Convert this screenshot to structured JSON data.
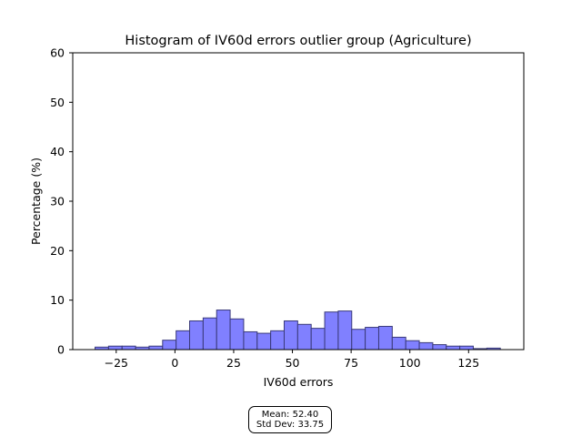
{
  "chart_data": {
    "type": "bar",
    "title": "Histogram of IV60d errors outlier group (Agriculture)",
    "xlabel": "IV60d errors",
    "ylabel": "Percentage (%)",
    "xlim": [
      -43.5,
      148.5
    ],
    "ylim": [
      0,
      60
    ],
    "xticks": [
      -25,
      0,
      25,
      50,
      75,
      100,
      125
    ],
    "yticks": [
      0,
      10,
      20,
      30,
      40,
      50,
      60
    ],
    "bin_width": 5.75,
    "bin_edges_start": -34.0,
    "values": [
      0.5,
      0.7,
      0.7,
      0.5,
      0.7,
      1.9,
      3.8,
      5.8,
      6.4,
      8.0,
      6.2,
      3.6,
      3.3,
      3.8,
      5.8,
      5.1,
      4.3,
      7.6,
      7.8,
      4.1,
      4.5,
      4.7,
      2.5,
      1.8,
      1.4,
      1.0,
      0.7,
      0.7,
      0.2,
      0.3
    ],
    "bar_color": "#8080ff",
    "bar_edge_color": "#3a3a7a",
    "grid": false
  },
  "stats": {
    "mean_label": "Mean: 52.40",
    "std_label": "Std Dev: 33.75"
  }
}
